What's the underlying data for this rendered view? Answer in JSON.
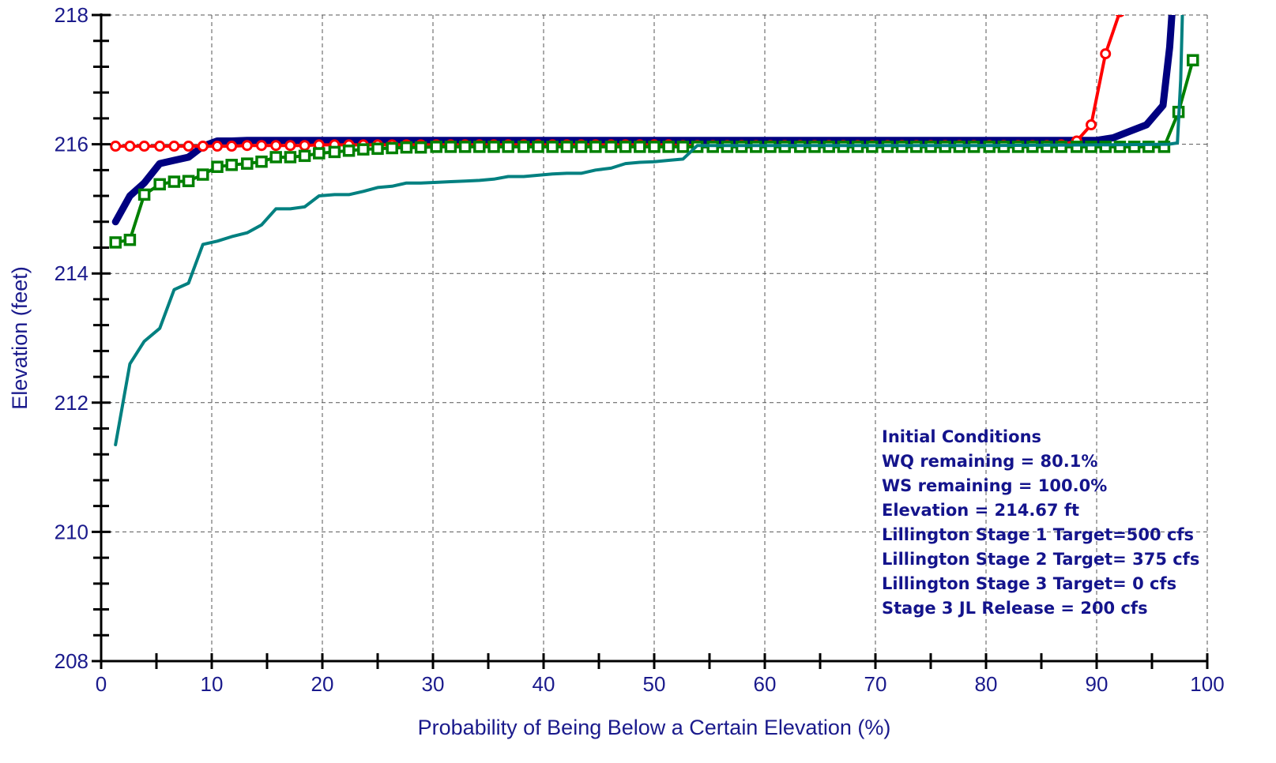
{
  "chart_data": {
    "type": "line",
    "xlabel": "Probability of Being Below a Certain Elevation (%)",
    "ylabel": "Elevation (feet)",
    "xlim": [
      0,
      100
    ],
    "ylim": [
      208,
      218
    ],
    "x_ticks": [
      0,
      10,
      20,
      30,
      40,
      50,
      60,
      70,
      80,
      90,
      100
    ],
    "y_ticks": [
      208,
      210,
      212,
      214,
      216,
      218
    ],
    "grid": true,
    "annotations": [
      "Initial Conditions",
      "WQ remaining = 80.1%",
      "WS remaining = 100.0%",
      "Elevation = 214.67 ft",
      "Lillington Stage 1 Target=500 cfs",
      "Lillington Stage 2 Target= 375 cfs",
      "Lillington Stage 3 Target= 0 cfs",
      "Stage 3 JL Release = 200 cfs"
    ],
    "series": [
      {
        "color": "#000080",
        "marker": "none",
        "width": 9,
        "x": [
          1.3,
          2.6,
          3.9,
          5.3,
          6.6,
          7.9,
          9.2,
          10.5,
          11.8,
          13.2,
          15,
          20,
          30,
          40,
          50,
          60,
          70,
          80,
          88,
          90,
          91.5,
          93,
          94.5,
          96,
          96.6,
          97.2
        ],
        "y": [
          214.8,
          215.2,
          215.4,
          215.7,
          215.75,
          215.8,
          215.97,
          216.05,
          216.05,
          216.06,
          216.06,
          216.06,
          216.06,
          216.06,
          216.06,
          216.06,
          216.06,
          216.06,
          216.06,
          216.06,
          216.1,
          216.2,
          216.3,
          216.6,
          217.5,
          219
        ]
      },
      {
        "color": "#ff0000",
        "marker": "circle",
        "width": 4,
        "x": [
          1.3,
          2.6,
          3.9,
          5.3,
          6.6,
          7.9,
          9.2,
          10.5,
          11.8,
          13.2,
          14.5,
          15.8,
          17.1,
          18.4,
          19.7,
          21.1,
          22.4,
          23.7,
          25,
          26.3,
          27.6,
          28.9,
          30.3,
          31.6,
          32.9,
          34.2,
          35.5,
          36.8,
          38.2,
          39.5,
          40.8,
          42.1,
          43.4,
          44.7,
          46.1,
          47.4,
          48.7,
          50,
          51.3,
          52.6,
          53.9,
          55.3,
          56.6,
          57.9,
          59.2,
          60.5,
          61.8,
          63.2,
          64.5,
          65.8,
          67.1,
          68.4,
          69.7,
          71.1,
          72.4,
          73.7,
          75,
          76.3,
          77.6,
          78.9,
          80.3,
          81.6,
          82.9,
          84.2,
          85.5,
          86.8,
          88.2,
          89.5,
          90.8,
          92.1
        ],
        "y": [
          215.97,
          215.97,
          215.97,
          215.97,
          215.97,
          215.97,
          215.97,
          215.97,
          215.97,
          215.98,
          215.98,
          215.98,
          215.98,
          215.98,
          215.99,
          215.99,
          215.99,
          215.99,
          215.99,
          215.99,
          215.99,
          215.99,
          215.99,
          215.99,
          215.99,
          215.99,
          215.99,
          215.99,
          215.99,
          215.99,
          215.99,
          215.99,
          215.99,
          215.99,
          215.99,
          215.99,
          215.99,
          215.99,
          215.99,
          215.98,
          215.98,
          215.98,
          215.98,
          215.98,
          215.98,
          215.98,
          215.98,
          215.98,
          215.98,
          215.98,
          215.98,
          215.98,
          215.98,
          215.98,
          215.98,
          215.98,
          215.98,
          215.98,
          215.98,
          215.98,
          215.98,
          215.98,
          215.98,
          215.98,
          215.98,
          215.99,
          216.05,
          216.3,
          217.4,
          218.05
        ]
      },
      {
        "color": "#008000",
        "marker": "square",
        "width": 4,
        "x": [
          1.3,
          2.6,
          3.9,
          5.3,
          6.6,
          7.9,
          9.2,
          10.5,
          11.8,
          13.2,
          14.5,
          15.8,
          17.1,
          18.4,
          19.7,
          21.1,
          22.4,
          23.7,
          25,
          26.3,
          27.6,
          28.9,
          30.3,
          31.6,
          32.9,
          34.2,
          35.5,
          36.8,
          38.2,
          39.5,
          40.8,
          42.1,
          43.4,
          44.7,
          46.1,
          47.4,
          48.7,
          50,
          51.3,
          52.6,
          53.9,
          55.3,
          56.6,
          57.9,
          59.2,
          60.5,
          61.8,
          63.2,
          64.5,
          65.8,
          67.1,
          68.4,
          69.7,
          71.1,
          72.4,
          73.7,
          75,
          76.3,
          77.6,
          78.9,
          80.3,
          81.6,
          82.9,
          84.2,
          85.5,
          86.8,
          88.2,
          89.5,
          90.8,
          92.1,
          93.4,
          94.7,
          96.1,
          97.4,
          98.7
        ],
        "y": [
          214.48,
          214.52,
          215.22,
          215.38,
          215.42,
          215.43,
          215.53,
          215.65,
          215.68,
          215.7,
          215.73,
          215.8,
          215.8,
          215.82,
          215.86,
          215.88,
          215.9,
          215.92,
          215.93,
          215.94,
          215.95,
          215.95,
          215.96,
          215.96,
          215.96,
          215.96,
          215.96,
          215.96,
          215.96,
          215.96,
          215.96,
          215.96,
          215.96,
          215.96,
          215.96,
          215.96,
          215.96,
          215.96,
          215.96,
          215.96,
          215.96,
          215.96,
          215.96,
          215.96,
          215.96,
          215.96,
          215.96,
          215.96,
          215.96,
          215.96,
          215.96,
          215.96,
          215.96,
          215.96,
          215.96,
          215.96,
          215.96,
          215.96,
          215.96,
          215.96,
          215.96,
          215.96,
          215.96,
          215.96,
          215.96,
          215.96,
          215.96,
          215.96,
          215.96,
          215.96,
          215.96,
          215.96,
          215.96,
          216.5,
          217.3
        ]
      },
      {
        "color": "#008080",
        "marker": "none",
        "width": 4,
        "x": [
          1.3,
          2.6,
          3.9,
          5.3,
          6.6,
          7.9,
          9.2,
          10.5,
          11.8,
          13.2,
          14.5,
          15.8,
          17.1,
          18.4,
          19.7,
          21.1,
          22.4,
          23.7,
          25,
          26.3,
          27.6,
          28.9,
          30.3,
          31.6,
          32.9,
          34.2,
          35.5,
          36.8,
          38.2,
          39.5,
          40.8,
          42.1,
          43.4,
          44.7,
          46.1,
          47.4,
          48.7,
          50,
          51.3,
          52.6,
          53.9,
          60,
          70,
          80,
          90,
          96.5,
          97.3,
          97.6,
          97.9
        ],
        "y": [
          211.35,
          212.6,
          212.95,
          213.15,
          213.75,
          213.85,
          214.45,
          214.5,
          214.57,
          214.63,
          214.75,
          215.0,
          215.0,
          215.03,
          215.2,
          215.22,
          215.22,
          215.27,
          215.33,
          215.35,
          215.4,
          215.4,
          215.41,
          215.42,
          215.43,
          215.44,
          215.46,
          215.5,
          215.5,
          215.52,
          215.54,
          215.55,
          215.55,
          215.6,
          215.63,
          215.7,
          215.72,
          215.73,
          215.75,
          215.77,
          215.98,
          215.98,
          215.98,
          215.98,
          215.99,
          216.0,
          216.02,
          217.0,
          219
        ]
      }
    ]
  }
}
